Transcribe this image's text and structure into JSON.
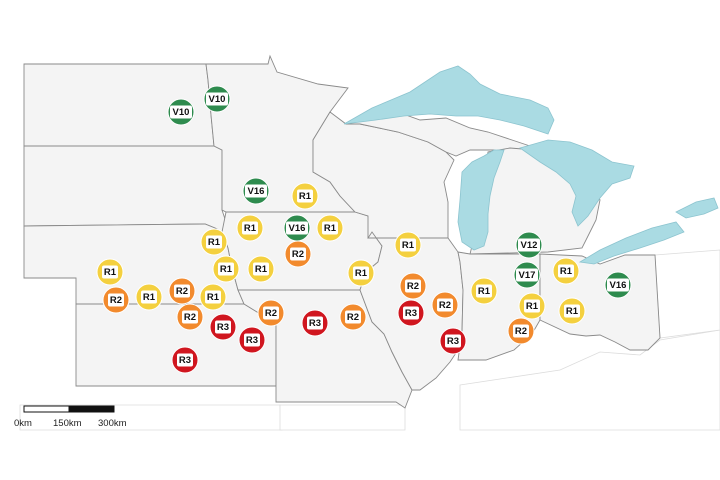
{
  "colors": {
    "R1": "#f4d03f",
    "R2": "#f28a2d",
    "R3": "#d0161f",
    "V": "#2e8b4e",
    "land": "#f4f4f4",
    "water": "#aadbe3"
  },
  "scale_bar": {
    "labels": [
      "0km",
      "150km",
      "300km"
    ]
  },
  "markers": [
    {
      "label": "V10",
      "type": "V"
    },
    {
      "label": "V10",
      "type": "V"
    },
    {
      "label": "V16",
      "type": "V"
    },
    {
      "label": "R1",
      "type": "R1"
    },
    {
      "label": "R1",
      "type": "R1"
    },
    {
      "label": "V16",
      "type": "V"
    },
    {
      "label": "R1",
      "type": "R1"
    },
    {
      "label": "R2",
      "type": "R2"
    },
    {
      "label": "R1",
      "type": "R1"
    },
    {
      "label": "R1",
      "type": "R1"
    },
    {
      "label": "R1",
      "type": "R1"
    },
    {
      "label": "R1",
      "type": "R1"
    },
    {
      "label": "R2",
      "type": "R2"
    },
    {
      "label": "R1",
      "type": "R1"
    },
    {
      "label": "R2",
      "type": "R2"
    },
    {
      "label": "R1",
      "type": "R1"
    },
    {
      "label": "R1",
      "type": "R1"
    },
    {
      "label": "R2",
      "type": "R2"
    },
    {
      "label": "R2",
      "type": "R2"
    },
    {
      "label": "R3",
      "type": "R3"
    },
    {
      "label": "R3",
      "type": "R3"
    },
    {
      "label": "R2",
      "type": "R2"
    },
    {
      "label": "R3",
      "type": "R3"
    },
    {
      "label": "R3",
      "type": "R3"
    },
    {
      "label": "R2",
      "type": "R2"
    },
    {
      "label": "R2",
      "type": "R2"
    },
    {
      "label": "R2",
      "type": "R2"
    },
    {
      "label": "R3",
      "type": "R3"
    },
    {
      "label": "R3",
      "type": "R3"
    },
    {
      "label": "R1",
      "type": "R1"
    },
    {
      "label": "V12",
      "type": "V"
    },
    {
      "label": "V17",
      "type": "V"
    },
    {
      "label": "R1",
      "type": "R1"
    },
    {
      "label": "R1",
      "type": "R1"
    },
    {
      "label": "R1",
      "type": "R1"
    },
    {
      "label": "R2",
      "type": "R2"
    },
    {
      "label": "R1",
      "type": "R1"
    },
    {
      "label": "V16",
      "type": "V"
    }
  ]
}
